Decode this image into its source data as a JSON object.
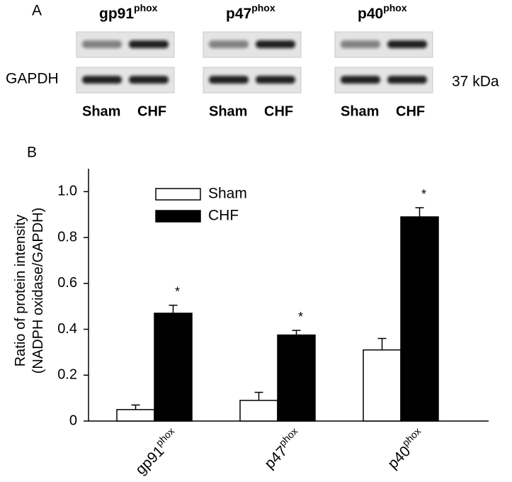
{
  "panel_a": {
    "label": "A",
    "proteins": [
      {
        "name": "gp91",
        "sup": "phox"
      },
      {
        "name": "p47",
        "sup": "phox"
      },
      {
        "name": "p40",
        "sup": "phox"
      }
    ],
    "loading_label": "GAPDH",
    "weight": "37 kDa",
    "lanes": [
      "Sham",
      "CHF"
    ]
  },
  "chart_data": {
    "type": "bar",
    "panel_label": "B",
    "ylabel": [
      "Ratio of protein intensity",
      "(NADPH oxidase/GAPDH)"
    ],
    "categories": [
      "gp91",
      "p47",
      "p40"
    ],
    "category_superscripts": [
      "phox",
      "phox",
      "phox"
    ],
    "series": [
      {
        "name": "Sham",
        "color": "#ffffff",
        "values": [
          0.05,
          0.09,
          0.31
        ],
        "errors": [
          0.02,
          0.035,
          0.05
        ]
      },
      {
        "name": "CHF",
        "color": "#000000",
        "values": [
          0.47,
          0.375,
          0.89
        ],
        "errors": [
          0.035,
          0.02,
          0.04
        ],
        "annotations": [
          "*",
          "*",
          "*"
        ]
      }
    ],
    "ylim": [
      0,
      1.1
    ],
    "yticks": [
      0,
      0.2,
      0.4,
      0.6,
      0.8,
      {
        "value": 1,
        "label": "1.0"
      }
    ],
    "legend": "upper-left"
  }
}
